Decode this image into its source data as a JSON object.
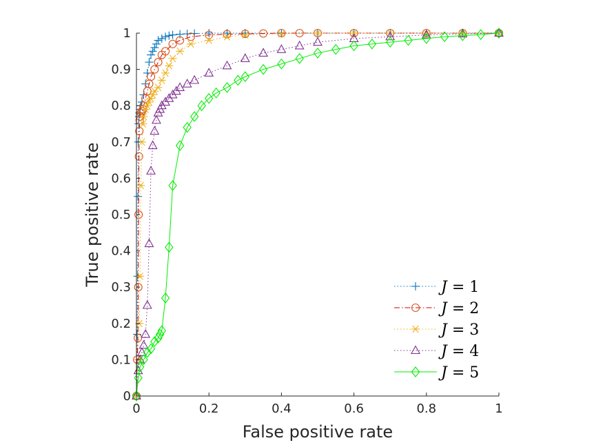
{
  "chart_data": {
    "type": "line",
    "title": "",
    "xlabel": "False positive rate",
    "ylabel": "True positive rate",
    "xlim": [
      0,
      1
    ],
    "ylim": [
      0,
      1
    ],
    "xticks": [
      0,
      0.2,
      0.4,
      0.6,
      0.8,
      1
    ],
    "xtick_labels": [
      "0",
      "0.2",
      "0.4",
      "0.6",
      "0.8",
      "1"
    ],
    "yticks": [
      0,
      0.1,
      0.2,
      0.3,
      0.4,
      0.5,
      0.6,
      0.7,
      0.8,
      0.9,
      1
    ],
    "ytick_labels": [
      "0",
      "0.1",
      "0.2",
      "0.3",
      "0.4",
      "0.5",
      "0.6",
      "0.7",
      "0.8",
      "0.9",
      "1"
    ],
    "grid": false,
    "legend_position": "bottom-right",
    "series": [
      {
        "name": "J = 1",
        "legend_var": "J",
        "legend_val": "1",
        "color": "#0072bd",
        "line_style": "dotted",
        "marker": "plus",
        "x": [
          0,
          0.002,
          0.003,
          0.004,
          0.005,
          0.006,
          0.007,
          0.008,
          0.01,
          0.012,
          0.015,
          0.02,
          0.025,
          0.03,
          0.035,
          0.04,
          0.045,
          0.05,
          0.055,
          0.06,
          0.07,
          0.08,
          0.09,
          0.1,
          0.12,
          0.14,
          0.16,
          0.2,
          0.25,
          0.3,
          0.4,
          0.5,
          0.6,
          0.7,
          0.8,
          0.9,
          1.0
        ],
        "y": [
          0,
          0.17,
          0.33,
          0.55,
          0.7,
          0.75,
          0.77,
          0.78,
          0.79,
          0.8,
          0.81,
          0.83,
          0.86,
          0.89,
          0.92,
          0.94,
          0.95,
          0.96,
          0.97,
          0.98,
          0.985,
          0.99,
          0.993,
          0.995,
          0.997,
          0.998,
          0.999,
          1,
          1,
          1,
          1,
          1,
          1,
          1,
          1,
          1,
          1
        ]
      },
      {
        "name": "J = 2",
        "legend_var": "J",
        "legend_val": "2",
        "color": "#d95319",
        "line_style": "dashdot",
        "line_color": "#cc0000",
        "marker": "circle",
        "x": [
          0,
          0.002,
          0.004,
          0.005,
          0.006,
          0.007,
          0.008,
          0.009,
          0.01,
          0.012,
          0.015,
          0.018,
          0.02,
          0.025,
          0.03,
          0.035,
          0.04,
          0.05,
          0.06,
          0.07,
          0.08,
          0.1,
          0.12,
          0.15,
          0.2,
          0.25,
          0.3,
          0.35,
          0.4,
          0.45,
          0.5,
          0.6,
          0.7,
          0.8,
          0.9,
          1.0
        ],
        "y": [
          0,
          0.1,
          0.16,
          0.3,
          0.5,
          0.66,
          0.73,
          0.76,
          0.77,
          0.78,
          0.785,
          0.79,
          0.8,
          0.82,
          0.84,
          0.86,
          0.88,
          0.9,
          0.92,
          0.94,
          0.95,
          0.97,
          0.98,
          0.99,
          0.995,
          0.997,
          0.998,
          0.999,
          1,
          1,
          1,
          1,
          1,
          1,
          1,
          1
        ]
      },
      {
        "name": "J = 3",
        "legend_var": "J",
        "legend_val": "3",
        "color": "#edb120",
        "line_style": "dotted",
        "marker": "asterisk",
        "x": [
          0,
          0.005,
          0.008,
          0.01,
          0.012,
          0.015,
          0.018,
          0.02,
          0.025,
          0.03,
          0.035,
          0.04,
          0.045,
          0.05,
          0.06,
          0.07,
          0.08,
          0.09,
          0.1,
          0.12,
          0.15,
          0.2,
          0.25,
          0.3,
          0.4,
          0.5,
          0.6,
          0.7,
          0.8,
          0.9,
          1.0
        ],
        "y": [
          0,
          0.1,
          0.2,
          0.33,
          0.58,
          0.7,
          0.75,
          0.77,
          0.79,
          0.8,
          0.81,
          0.82,
          0.83,
          0.84,
          0.85,
          0.87,
          0.89,
          0.91,
          0.93,
          0.95,
          0.97,
          0.98,
          0.99,
          0.995,
          0.998,
          1,
          1,
          1,
          1,
          1,
          1
        ]
      },
      {
        "name": "J = 4",
        "legend_var": "J",
        "legend_val": "4",
        "color": "#7e2f8e",
        "line_style": "dotted",
        "marker": "triangle",
        "x": [
          0,
          0.005,
          0.01,
          0.015,
          0.02,
          0.025,
          0.03,
          0.035,
          0.04,
          0.045,
          0.05,
          0.055,
          0.06,
          0.065,
          0.07,
          0.08,
          0.09,
          0.1,
          0.11,
          0.12,
          0.14,
          0.16,
          0.2,
          0.25,
          0.3,
          0.35,
          0.4,
          0.45,
          0.5,
          0.6,
          0.7,
          0.8,
          0.9,
          1.0
        ],
        "y": [
          0,
          0.07,
          0.1,
          0.12,
          0.14,
          0.17,
          0.25,
          0.42,
          0.62,
          0.69,
          0.73,
          0.76,
          0.78,
          0.79,
          0.8,
          0.81,
          0.82,
          0.83,
          0.84,
          0.85,
          0.86,
          0.87,
          0.89,
          0.91,
          0.93,
          0.945,
          0.955,
          0.965,
          0.975,
          0.985,
          0.99,
          0.995,
          0.998,
          1.0
        ]
      },
      {
        "name": "J = 5",
        "legend_var": "J",
        "legend_val": "5",
        "color": "#00ee00",
        "line_style": "solid",
        "marker": "diamond",
        "x": [
          0,
          0.005,
          0.01,
          0.02,
          0.03,
          0.04,
          0.05,
          0.06,
          0.065,
          0.07,
          0.08,
          0.09,
          0.1,
          0.12,
          0.14,
          0.16,
          0.18,
          0.2,
          0.22,
          0.25,
          0.28,
          0.3,
          0.35,
          0.4,
          0.45,
          0.5,
          0.55,
          0.6,
          0.65,
          0.7,
          0.75,
          0.8,
          0.85,
          0.9,
          0.95,
          1.0
        ],
        "y": [
          0,
          0.05,
          0.08,
          0.1,
          0.12,
          0.13,
          0.15,
          0.16,
          0.17,
          0.18,
          0.27,
          0.41,
          0.58,
          0.69,
          0.74,
          0.77,
          0.8,
          0.82,
          0.835,
          0.85,
          0.87,
          0.88,
          0.9,
          0.915,
          0.93,
          0.945,
          0.955,
          0.965,
          0.97,
          0.975,
          0.98,
          0.985,
          0.99,
          0.993,
          0.996,
          1.0
        ]
      }
    ]
  }
}
